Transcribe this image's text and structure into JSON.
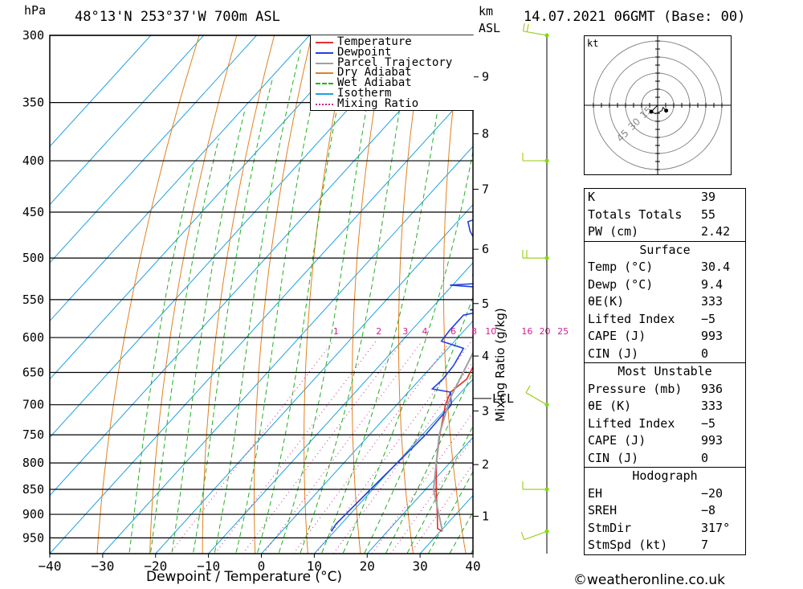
{
  "header": {
    "pressure_unit": "hPa",
    "location": "48°13'N  253°37'W  700m  ASL",
    "km_label": "km",
    "asl_label": "ASL",
    "datetime": "14.07.2021  06GMT  (Base: 00)"
  },
  "legend": {
    "items": [
      {
        "label": "Temperature",
        "color": "#e03030",
        "style": "solid"
      },
      {
        "label": "Dewpoint",
        "color": "#2040e0",
        "style": "solid"
      },
      {
        "label": "Parcel Trajectory",
        "color": "#a0a0a0",
        "style": "solid"
      },
      {
        "label": "Dry Adiabat",
        "color": "#e08020",
        "style": "solid"
      },
      {
        "label": "Wet Adiabat",
        "color": "#20b020",
        "style": "dashed"
      },
      {
        "label": "Isotherm",
        "color": "#20a0e0",
        "style": "solid"
      },
      {
        "label": "Mixing Ratio",
        "color": "#d02090",
        "style": "dotted"
      }
    ]
  },
  "chart_data": {
    "type": "line",
    "title": "48°13'N  253°37'W  700m  ASL",
    "xlabel": "Dewpoint / Temperature (°C)",
    "ylabel": "hPa",
    "xlim": [
      -40,
      40
    ],
    "ylim": [
      300,
      985
    ],
    "y_scale": "log",
    "x_ticks": [
      "−40",
      "−30",
      "−20",
      "−10",
      "0",
      "10",
      "20",
      "30",
      "40"
    ],
    "pressure_levels": [
      300,
      350,
      400,
      450,
      500,
      550,
      600,
      650,
      700,
      750,
      800,
      850,
      900,
      950
    ],
    "height_axis_label": "km ASL",
    "height_ticks": [
      {
        "km": "1",
        "p": 904
      },
      {
        "km": "2",
        "p": 803
      },
      {
        "km": "3",
        "p": 710
      },
      {
        "km": "4",
        "p": 626
      },
      {
        "km": "5",
        "p": 555
      },
      {
        "km": "6",
        "p": 490
      },
      {
        "km": "7",
        "p": 427
      },
      {
        "km": "8",
        "p": 376
      },
      {
        "km": "9",
        "p": 330
      }
    ],
    "lcl_label": "LCL",
    "lcl_pressure": 690,
    "mixing_ratio_axis_label": "Mixing Ratio (g/kg)",
    "mixing_ratio_labels": [
      "1",
      "2",
      "3",
      "4",
      "6",
      "8",
      "10",
      "16",
      "20",
      "25"
    ],
    "series": [
      {
        "name": "Temperature",
        "color": "#e03030",
        "points": [
          [
            936,
            30.4
          ],
          [
            930,
            29.0
          ],
          [
            900,
            26.5
          ],
          [
            850,
            22.0
          ],
          [
            800,
            17.5
          ],
          [
            750,
            13.3
          ],
          [
            700,
            9.2
          ],
          [
            680,
            8.0
          ],
          [
            660,
            8.8
          ],
          [
            640,
            7.8
          ],
          [
            620,
            6.2
          ],
          [
            600,
            4.9
          ],
          [
            580,
            3.5
          ],
          [
            565,
            2.4
          ],
          [
            555,
            1.4
          ],
          [
            550,
            1.7
          ],
          [
            540,
            0.8
          ],
          [
            525,
            0.2
          ],
          [
            510,
            -0.3
          ],
          [
            500,
            -1.2
          ],
          [
            490,
            -1.6
          ],
          [
            475,
            -2.3
          ],
          [
            460,
            -2.1
          ],
          [
            450,
            -2.0
          ],
          [
            420,
            -3.7
          ],
          [
            400,
            -5.2
          ],
          [
            375,
            -8.5
          ],
          [
            350,
            -13.0
          ],
          [
            325,
            -17.8
          ],
          [
            300,
            -22.5
          ]
        ]
      },
      {
        "name": "Dewpoint",
        "color": "#2040e0",
        "points": [
          [
            936,
            9.4
          ],
          [
            920,
            9.0
          ],
          [
            850,
            9.6
          ],
          [
            750,
            10.6
          ],
          [
            700,
            10.3
          ],
          [
            680,
            8.0
          ],
          [
            675,
            4.0
          ],
          [
            660,
            4.3
          ],
          [
            640,
            4.0
          ],
          [
            615,
            2.9
          ],
          [
            605,
            -2.5
          ],
          [
            590,
            -2.8
          ],
          [
            570,
            -2.8
          ],
          [
            565,
            0.0
          ],
          [
            563,
            -2.5
          ],
          [
            560,
            0.5
          ],
          [
            555,
            1.0
          ],
          [
            552,
            -3.0
          ],
          [
            545,
            1.0
          ],
          [
            540,
            -1.5
          ],
          [
            537,
            0.5
          ],
          [
            532,
            -10.5
          ],
          [
            528,
            -0.5
          ],
          [
            520,
            -8.0
          ],
          [
            510,
            -1.0
          ],
          [
            505,
            -4.0
          ],
          [
            500,
            -10.0
          ],
          [
            480,
            -13.5
          ],
          [
            470,
            -16.0
          ],
          [
            460,
            -18.0
          ],
          [
            455,
            -16.2
          ],
          [
            440,
            -17.0
          ],
          [
            420,
            -16.0
          ],
          [
            410,
            -21.5
          ],
          [
            400,
            -24.5
          ],
          [
            370,
            -24.5
          ],
          [
            350,
            -26.0
          ],
          [
            340,
            -26.0
          ],
          [
            320,
            -25.5
          ],
          [
            300,
            -27.5
          ]
        ]
      },
      {
        "name": "Parcel Trajectory",
        "color": "#a0a0a0",
        "points": [
          [
            936,
            30.4
          ],
          [
            850,
            21.5
          ],
          [
            750,
            13.2
          ],
          [
            690,
            9.0
          ],
          [
            650,
            7.0
          ],
          [
            600,
            4.3
          ],
          [
            550,
            0.7
          ],
          [
            500,
            -3.5
          ],
          [
            450,
            -8.8
          ],
          [
            400,
            -15.0
          ],
          [
            350,
            -22.5
          ],
          [
            310,
            -29.5
          ]
        ]
      }
    ],
    "winds": [
      {
        "p": 936,
        "dir": 250,
        "kt": 5
      },
      {
        "p": 850,
        "dir": 270,
        "kt": 10
      },
      {
        "p": 700,
        "dir": 300,
        "kt": 10
      },
      {
        "p": 500,
        "dir": 270,
        "kt": 15
      },
      {
        "p": 400,
        "dir": 270,
        "kt": 10
      },
      {
        "p": 300,
        "dir": 280,
        "kt": 15
      }
    ]
  },
  "hodograph": {
    "unit": "kt",
    "ring_labels": [
      "15",
      "30",
      "45"
    ],
    "points": [
      [
        0,
        0
      ],
      [
        -6,
        -6
      ],
      [
        -2,
        -8
      ],
      [
        4,
        -5
      ],
      [
        5,
        -2
      ],
      [
        8,
        -5
      ]
    ]
  },
  "indices": {
    "basic": [
      {
        "label": "K",
        "value": "39"
      },
      {
        "label": "Totals Totals",
        "value": "55"
      },
      {
        "label": "PW (cm)",
        "value": "2.42"
      }
    ],
    "surface_title": "Surface",
    "surface": [
      {
        "label": "Temp (°C)",
        "value": "30.4"
      },
      {
        "label": "Dewp (°C)",
        "value": "9.4"
      },
      {
        "label": "θE(K)",
        "value": "333"
      },
      {
        "label": "Lifted Index",
        "value": "−5"
      },
      {
        "label": "CAPE (J)",
        "value": "993"
      },
      {
        "label": "CIN (J)",
        "value": "0"
      }
    ],
    "mu_title": "Most Unstable",
    "most_unstable": [
      {
        "label": "Pressure (mb)",
        "value": "936"
      },
      {
        "label": "θE (K)",
        "value": "333"
      },
      {
        "label": "Lifted Index",
        "value": "−5"
      },
      {
        "label": "CAPE (J)",
        "value": "993"
      },
      {
        "label": "CIN (J)",
        "value": "0"
      }
    ],
    "hodo_title": "Hodograph",
    "hodo": [
      {
        "label": "EH",
        "value": "−20"
      },
      {
        "label": "SREH",
        "value": "−8"
      },
      {
        "label": "StmDir",
        "value": "317°"
      },
      {
        "label": "StmSpd (kt)",
        "value": "7"
      }
    ]
  },
  "footer": {
    "copyright": "©weatheronline.co.uk"
  }
}
